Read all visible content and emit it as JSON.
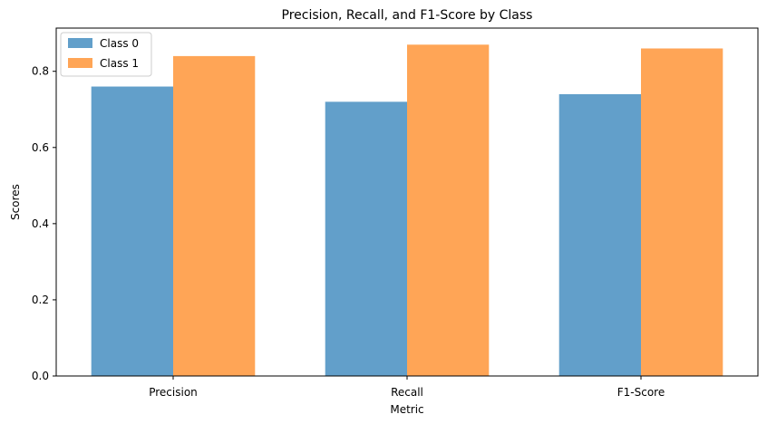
{
  "chart_data": {
    "type": "bar",
    "title": "Precision, Recall, and F1-Score by Class",
    "xlabel": "Metric",
    "ylabel": "Scores",
    "categories": [
      "Precision",
      "Recall",
      "F1-Score"
    ],
    "series": [
      {
        "name": "Class 0",
        "values": [
          0.76,
          0.72,
          0.74
        ],
        "color": "#629fca"
      },
      {
        "name": "Class 1",
        "values": [
          0.84,
          0.87,
          0.86
        ],
        "color": "#ffa556"
      }
    ],
    "ylim": [
      0,
      0.9135
    ],
    "yticks": [
      0.0,
      0.2,
      0.4,
      0.6,
      0.8
    ],
    "ytick_labels": [
      "0.0",
      "0.2",
      "0.4",
      "0.6",
      "0.8"
    ],
    "grid": false,
    "legend": "top-left"
  }
}
